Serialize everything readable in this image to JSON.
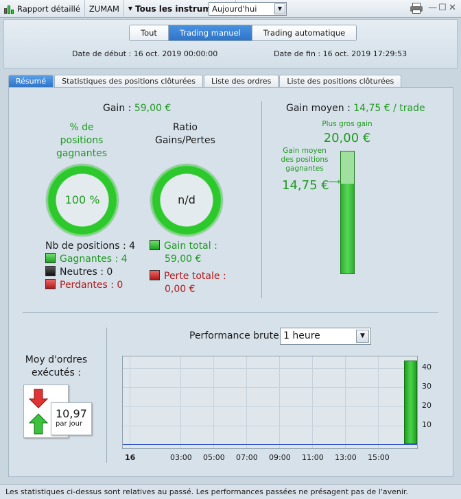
{
  "toolbar": {
    "report_label": "Rapport détaillé",
    "ticker": "ZUMAM",
    "instruments_label": "Tous les instruments",
    "period_value": "Aujourd'hui",
    "win_min": "—",
    "win_max": "☐",
    "win_close": "✕"
  },
  "filter_tabs": [
    {
      "label": "Tout",
      "active": false
    },
    {
      "label": "Trading manuel",
      "active": true
    },
    {
      "label": "Trading automatique",
      "active": false
    }
  ],
  "dates": {
    "start_label": "Date de début :",
    "start_value": "16 oct. 2019 00:00:00",
    "end_label": "Date de fin :",
    "end_value": "16 oct. 2019 17:29:53"
  },
  "tabs": [
    {
      "label": "Résumé",
      "active": true
    },
    {
      "label": "Statistiques des positions clôturées",
      "active": false
    },
    {
      "label": "Liste des ordres",
      "active": false
    },
    {
      "label": "Liste des positions clôturées",
      "active": false
    }
  ],
  "summary": {
    "gain_label": "Gain :",
    "gain_value": "59,00 €",
    "win_pct_title_1": "% de",
    "win_pct_title_2": "positions",
    "win_pct_title_3": "gagnantes",
    "win_pct_value": "100 %",
    "ratio_title_1": "Ratio",
    "ratio_title_2": "Gains/Pertes",
    "ratio_value": "n/d",
    "positions_count": "Nb de positions : 4",
    "winning": "Gagnantes : 4",
    "neutral": "Neutres : 0",
    "losing": "Perdantes : 0",
    "total_gain_label": "Gain total :",
    "total_gain_value": "59,00 €",
    "total_loss_label": "Perte totale :",
    "total_loss_value": "0,00 €"
  },
  "average": {
    "title": "Gain moyen :",
    "value": "14,75 € / trade",
    "biggest_label": "Plus gros gain",
    "biggest_value": "20,00 €",
    "avg_win_label_1": "Gain moyen",
    "avg_win_label_2": "des positions",
    "avg_win_label_3": "gagnantes",
    "avg_win_value": "14,75 €",
    "fill_fraction": 0.7375
  },
  "orders": {
    "title_1": "Moy d'ordres",
    "title_2": "exécutés :",
    "value": "10,97",
    "unit": "par jour"
  },
  "performance": {
    "label": "Performance brute",
    "interval": "1 heure"
  },
  "chart_data": {
    "type": "bar",
    "x_ticks": [
      "16",
      "03:00",
      "05:00",
      "07:00",
      "09:00",
      "11:00",
      "13:00",
      "15:00"
    ],
    "y_ticks": [
      "40",
      "30",
      "20",
      "10"
    ],
    "ylim": [
      -2,
      46
    ],
    "bars": [
      {
        "x": "17:00",
        "value": 44
      }
    ]
  },
  "footer": "Les statistiques ci-dessus sont relatives au passé. Les performances passées ne présagent pas de l'avenir."
}
